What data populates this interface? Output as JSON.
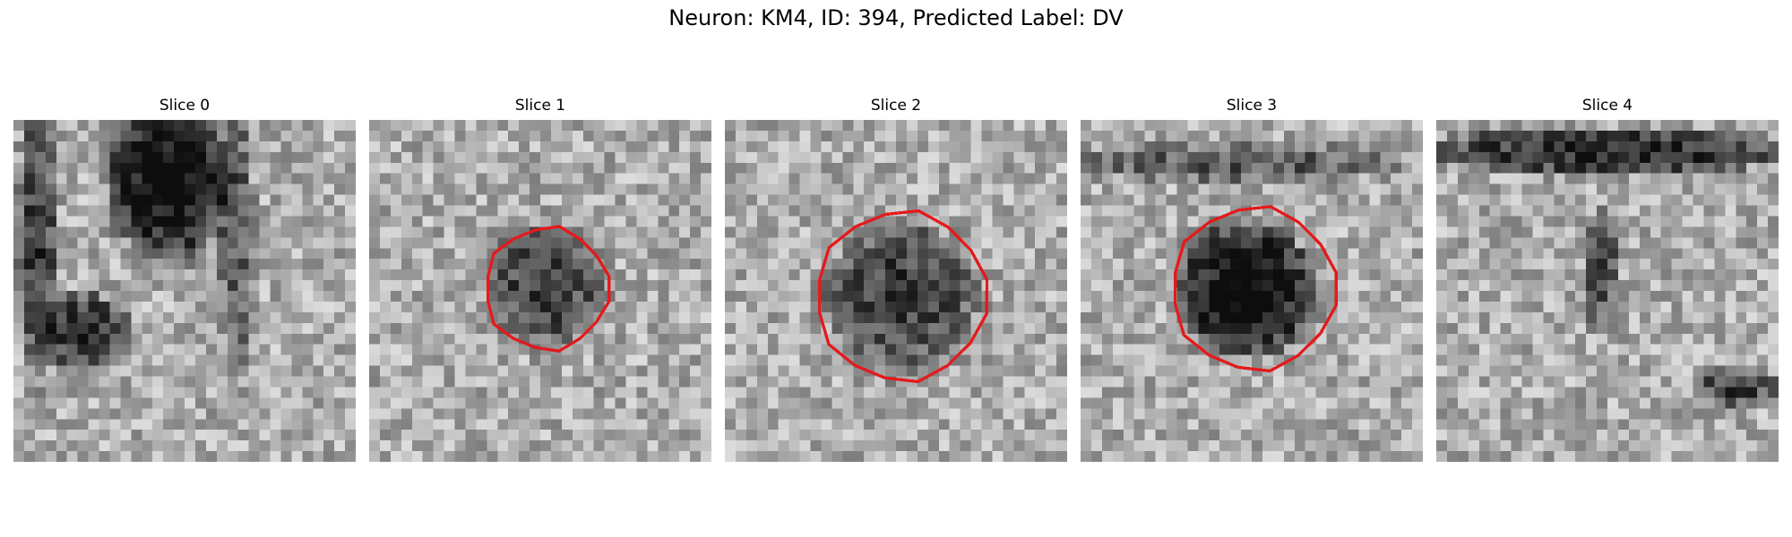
{
  "figure": {
    "title": "Neuron: KM4, ID: 394, Predicted Label: DV"
  },
  "panels": [
    {
      "title": "Slice 0",
      "has_contour": false,
      "seed": 11,
      "cell_darkness": 0.0
    },
    {
      "title": "Slice 1",
      "has_contour": true,
      "seed": 23,
      "cell_darkness": 0.45
    },
    {
      "title": "Slice 2",
      "has_contour": true,
      "seed": 37,
      "cell_darkness": 0.45
    },
    {
      "title": "Slice 3",
      "has_contour": true,
      "seed": 51,
      "cell_darkness": 0.65
    },
    {
      "title": "Slice 4",
      "has_contour": false,
      "seed": 67,
      "cell_darkness": 0.0
    }
  ],
  "colors": {
    "contour": "#e41a1c",
    "background": "#ffffff",
    "text": "#000000"
  },
  "image_style": "grayscale pixelated microscopy slices"
}
